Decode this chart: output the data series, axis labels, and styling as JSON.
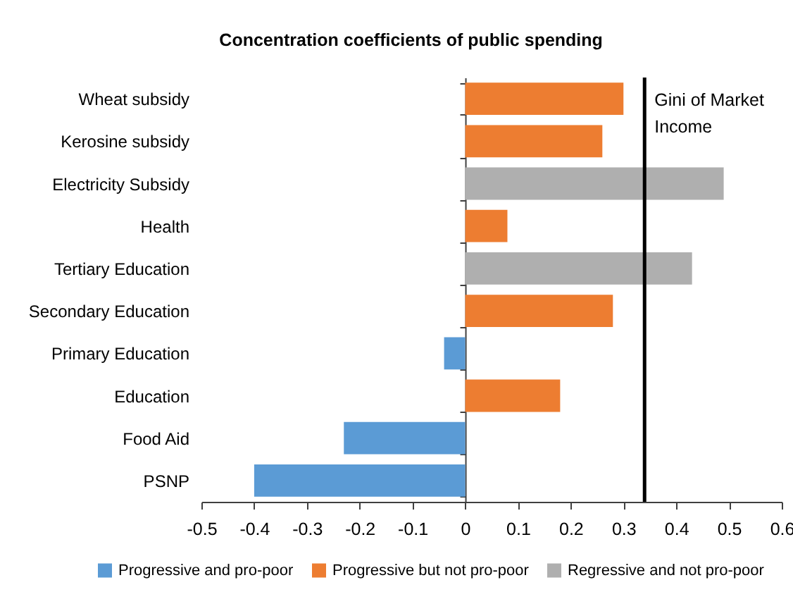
{
  "chart_data": {
    "type": "bar",
    "orientation": "horizontal",
    "title": "Concentration coefficients of public spending",
    "categories": [
      "Wheat subsidy",
      "Kerosine subsidy",
      "Electricity Subsidy",
      "Health",
      "Tertiary Education",
      "Secondary Education",
      "Primary Education",
      "Education",
      "Food Aid",
      "PSNP"
    ],
    "series": [
      {
        "name": "Progressive and pro-poor",
        "color": "#5b9bd5",
        "values": [
          null,
          null,
          null,
          null,
          null,
          null,
          -0.04,
          null,
          -0.23,
          -0.4
        ]
      },
      {
        "name": "Progressive but not pro-poor",
        "color": "#ed7d31",
        "values": [
          0.3,
          0.26,
          null,
          0.08,
          null,
          0.28,
          null,
          0.18,
          null,
          null
        ]
      },
      {
        "name": "Regressive and not pro-poor",
        "color": "#afafaf",
        "values": [
          null,
          null,
          0.49,
          null,
          0.43,
          null,
          null,
          null,
          null,
          null
        ]
      }
    ],
    "xlim": [
      -0.5,
      0.6
    ],
    "xticks": [
      -0.5,
      -0.4,
      -0.3,
      -0.2,
      -0.1,
      0,
      0.1,
      0.2,
      0.3,
      0.4,
      0.5,
      0.6
    ],
    "ref_lines": [
      {
        "axis": "x",
        "value": 0.34,
        "label": "Gini of Market Income",
        "color": "#000000"
      }
    ],
    "legend": "bottom"
  }
}
